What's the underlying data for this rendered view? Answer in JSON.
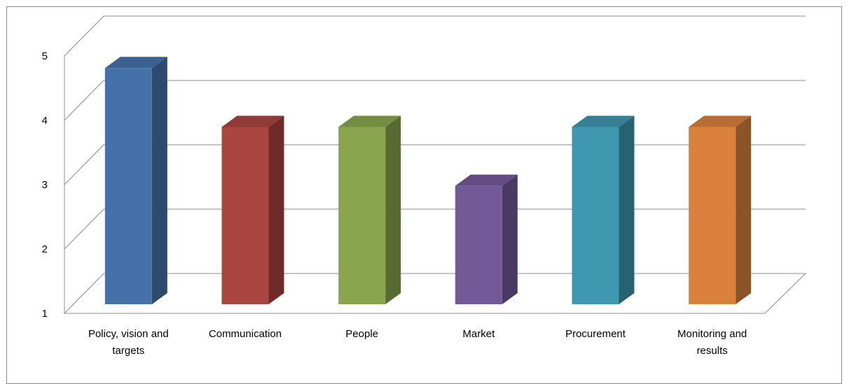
{
  "chart_data": {
    "type": "bar",
    "style": "3d-column",
    "categories": [
      "Policy, vision and targets",
      "Communication",
      "People",
      "Market",
      "Procurement",
      "Monitoring and results"
    ],
    "category_lines": [
      [
        "Policy, vision and",
        "targets"
      ],
      [
        "Communication"
      ],
      [
        "People"
      ],
      [
        "Market"
      ],
      [
        "Procurement"
      ],
      [
        "Monitoring and",
        "results"
      ]
    ],
    "values": [
      5,
      4,
      4,
      3,
      4,
      4
    ],
    "ylim": [
      1,
      5
    ],
    "yticks": [
      "1",
      "2",
      "3",
      "4",
      "5"
    ],
    "grid": true,
    "legend": "none",
    "colors": {
      "front": [
        "#4472a8",
        "#aa4642",
        "#89a54e",
        "#735998",
        "#4097b0",
        "#da813d"
      ],
      "side": [
        "#2d4a6d",
        "#6e2b2a",
        "#586a31",
        "#4a3963",
        "#286272",
        "#8c5326"
      ],
      "top": [
        "#3a6190",
        "#913b38",
        "#758d42",
        "#624c82",
        "#367f94",
        "#b86c33"
      ],
      "grid": "#8c8c8c"
    }
  }
}
